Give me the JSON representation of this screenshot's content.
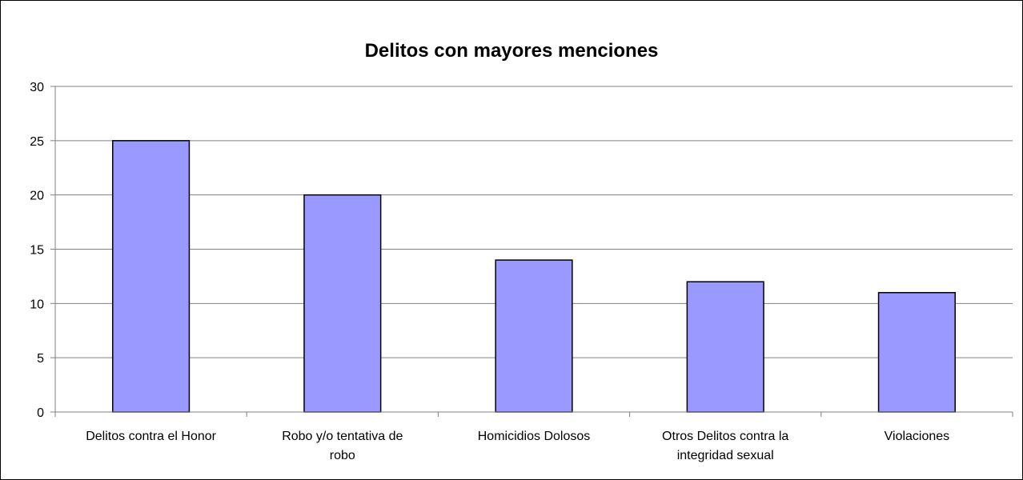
{
  "chart_data": {
    "type": "bar",
    "title": "Delitos con mayores menciones",
    "xlabel": "",
    "ylabel": "",
    "categories": [
      [
        "Delitos contra el Honor"
      ],
      [
        "Robo y/o tentativa de",
        "robo"
      ],
      [
        "Homicidios Dolosos"
      ],
      [
        "Otros Delitos contra la",
        "integridad sexual"
      ],
      [
        "Violaciones"
      ]
    ],
    "values": [
      25,
      20,
      14,
      12,
      11
    ],
    "ylim": [
      0,
      30
    ],
    "yticks": [
      0,
      5,
      10,
      15,
      20,
      25,
      30
    ],
    "grid": true,
    "legend": false,
    "colors": {
      "bar_fill": "#9999ff",
      "bar_stroke": "#000000",
      "grid": "#808080",
      "axis": "#808080"
    }
  }
}
